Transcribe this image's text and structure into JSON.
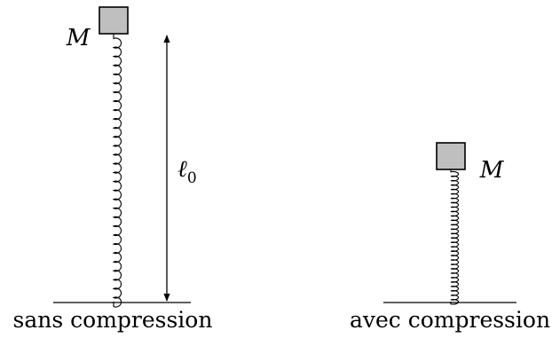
{
  "left_panel": {
    "caption": "sans compression",
    "mass_label": "M",
    "length_label": "ℓ",
    "length_subscript": "0",
    "coil_count": 30
  },
  "right_panel": {
    "caption": "avec compression",
    "mass_label": "M",
    "coil_count": 30
  },
  "colors": {
    "mass_fill": "#bfbfbf",
    "stroke": "#000000",
    "background": "#ffffff"
  }
}
